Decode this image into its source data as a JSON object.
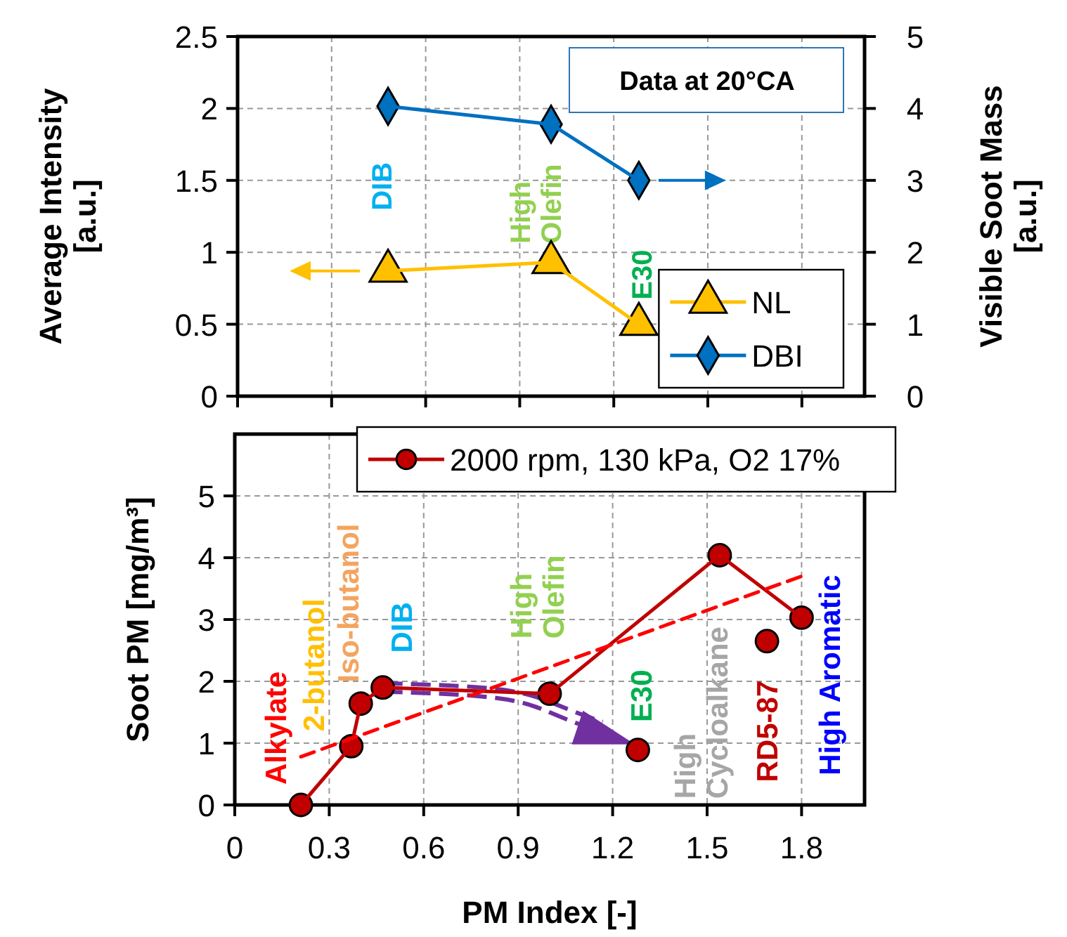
{
  "chart_data": [
    {
      "type": "line",
      "ylabel": "Average Intensity\n[a.u.]",
      "y2label": "Visible  Soot Mass\n[a.u.]",
      "xlim": [
        0,
        2
      ],
      "xticks": [
        0,
        0.3,
        0.6,
        0.9,
        1.2,
        1.5,
        1.8
      ],
      "ylim": [
        0,
        2.5
      ],
      "yticks": [
        0,
        0.5,
        1,
        1.5,
        2,
        2.5
      ],
      "y2lim": [
        0,
        5
      ],
      "y2ticks": [
        0,
        1,
        2,
        3,
        4,
        5
      ],
      "tick_labels": "y",
      "grid": true,
      "legend": "bottom right",
      "series": [
        {
          "name": "NL",
          "color": "#ffc000",
          "axis": "y",
          "marker": "triangle",
          "x": [
            0.48,
            1.0,
            1.28
          ],
          "values": [
            0.87,
            0.93,
            0.5
          ]
        },
        {
          "name": "DBI",
          "color": "#0070c0",
          "axis": "y2",
          "marker": "diamond",
          "x": [
            0.48,
            1.0,
            1.28
          ],
          "values": [
            4.03,
            3.78,
            3.0
          ]
        }
      ],
      "annotations": [
        "Data at 20°CA",
        "DIB",
        "High\nOlefin",
        "E30"
      ]
    },
    {
      "type": "line",
      "xlabel": "PM Index [-]",
      "ylabel": "Soot PM [mg/m³]",
      "xlim": [
        0,
        2
      ],
      "xticks": [
        0,
        0.3,
        0.6,
        0.9,
        1.2,
        1.5,
        1.8
      ],
      "ylim": [
        0,
        6
      ],
      "yticks": [
        0,
        1,
        2,
        3,
        4,
        5
      ],
      "grid": true,
      "legend": "top right",
      "series": [
        {
          "name": "2000 rpm, 130 kPa, O2 17%",
          "color": "#c00000",
          "marker": "circle",
          "x": [
            0.21,
            0.37,
            0.4,
            0.47,
            1.0,
            1.54,
            1.8
          ],
          "values": [
            0,
            0.95,
            1.64,
            1.9,
            1.8,
            4.04,
            3.03
          ]
        },
        {
          "type": "scatter",
          "color": "#c00000",
          "marker": "circle",
          "x": [
            1.28,
            1.69
          ],
          "values": [
            0.89,
            2.65
          ]
        },
        {
          "color": "#ff0000",
          "marker": "none",
          "line_style": "dashed",
          "x": [
            0.21,
            1.8
          ],
          "values": [
            0.78,
            3.7
          ]
        }
      ],
      "annotations": [
        "Alkylate",
        "2-butanol",
        "Iso-butanol",
        "DIB",
        "High\nOlefin",
        {
          "text": "E30",
          "x": 1.28,
          "y": 0.89
        },
        "High\nCycloalkane",
        "RD5-87",
        "High Aromatic"
      ]
    }
  ]
}
